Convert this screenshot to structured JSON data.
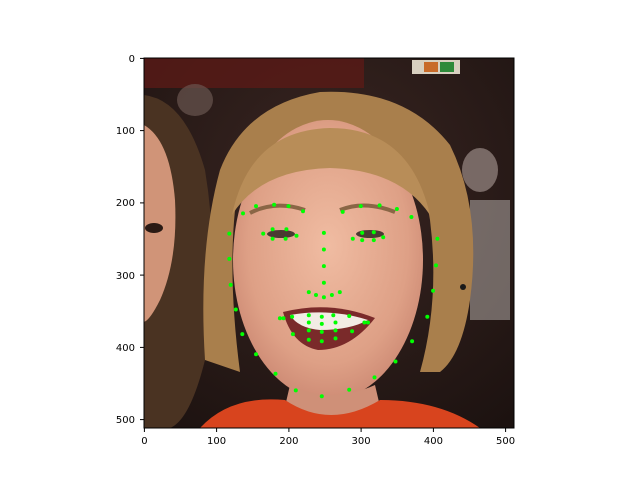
{
  "chart_data": {
    "type": "scatter",
    "title": "",
    "xlabel": "",
    "ylabel": "",
    "xlim": [
      0,
      512
    ],
    "ylim": [
      512,
      0
    ],
    "y_inverted": true,
    "grid": false,
    "xticks": [
      "0",
      "100",
      "200",
      "300",
      "400",
      "500"
    ],
    "yticks": [
      "0",
      "100",
      "200",
      "300",
      "400",
      "500"
    ],
    "marker_color": "#00ff00",
    "points": [
      [
        118,
        243
      ],
      [
        118,
        278
      ],
      [
        120,
        314
      ],
      [
        127,
        348
      ],
      [
        136,
        382
      ],
      [
        155,
        410
      ],
      [
        182,
        437
      ],
      [
        210,
        460
      ],
      [
        246,
        468
      ],
      [
        284,
        459
      ],
      [
        319,
        442
      ],
      [
        348,
        420
      ],
      [
        371,
        392
      ],
      [
        392,
        358
      ],
      [
        400,
        322
      ],
      [
        404,
        287
      ],
      [
        406,
        250
      ],
      [
        137,
        215
      ],
      [
        155,
        205
      ],
      [
        180,
        203
      ],
      [
        200,
        205
      ],
      [
        220,
        212
      ],
      [
        275,
        213
      ],
      [
        300,
        205
      ],
      [
        326,
        204
      ],
      [
        350,
        209
      ],
      [
        370,
        220
      ],
      [
        249,
        242
      ],
      [
        249,
        265
      ],
      [
        249,
        288
      ],
      [
        249,
        311
      ],
      [
        228,
        324
      ],
      [
        238,
        328
      ],
      [
        249,
        331
      ],
      [
        260,
        328
      ],
      [
        271,
        324
      ],
      [
        165,
        243
      ],
      [
        178,
        237
      ],
      [
        197,
        237
      ],
      [
        211,
        246
      ],
      [
        196,
        250
      ],
      [
        178,
        250
      ],
      [
        289,
        250
      ],
      [
        302,
        242
      ],
      [
        318,
        241
      ],
      [
        331,
        248
      ],
      [
        318,
        252
      ],
      [
        302,
        252
      ],
      [
        188,
        360
      ],
      [
        205,
        358
      ],
      [
        228,
        356
      ],
      [
        246,
        358
      ],
      [
        262,
        356
      ],
      [
        284,
        357
      ],
      [
        310,
        366
      ],
      [
        288,
        378
      ],
      [
        265,
        388
      ],
      [
        246,
        392
      ],
      [
        228,
        390
      ],
      [
        206,
        382
      ],
      [
        193,
        360
      ],
      [
        228,
        366
      ],
      [
        246,
        368
      ],
      [
        265,
        366
      ],
      [
        305,
        366
      ],
      [
        265,
        377
      ],
      [
        246,
        379
      ],
      [
        228,
        377
      ]
    ]
  },
  "photo": {
    "subject": "smiling woman with short light-brown hair wearing an orange-red top, dark crowded background",
    "colors": {
      "background": "#2a1c18",
      "hair": "#a97f4c",
      "skin": "#e2a88e",
      "shirt": "#d8441e",
      "other_person_hair": "#4a3322"
    }
  }
}
